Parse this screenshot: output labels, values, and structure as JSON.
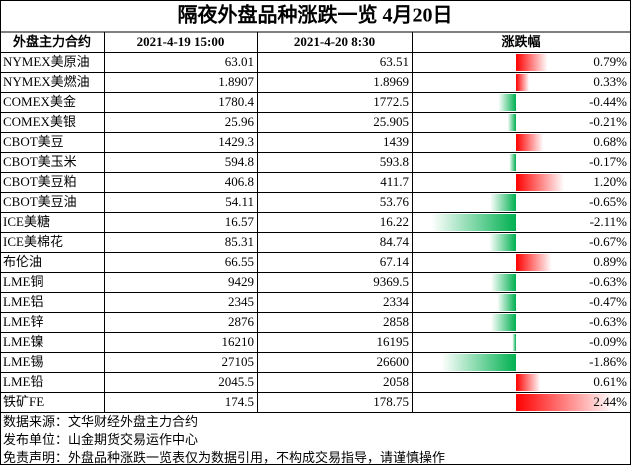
{
  "title": "隔夜外盘品种涨跌一览 4月20日",
  "table": {
    "header": [
      "外盘主力合约",
      "2021-4-19 15:00",
      "2021-4-20 8:30",
      "涨跌幅"
    ],
    "rows": [
      [
        "NYMEX美原油",
        "63.01",
        "63.51",
        "0.79%"
      ],
      [
        "NYMEX美燃油",
        "1.8907",
        "1.8969",
        "0.33%"
      ],
      [
        "COMEX美金",
        "1780.4",
        "1772.5",
        "-0.44%"
      ],
      [
        "COMEX美银",
        "25.96",
        "25.905",
        "-0.21%"
      ],
      [
        "CBOT美豆",
        "1429.3",
        "1439",
        "0.68%"
      ],
      [
        "CBOT美玉米",
        "594.8",
        "593.8",
        "-0.17%"
      ],
      [
        "CBOT美豆粕",
        "406.8",
        "411.7",
        "1.20%"
      ],
      [
        "CBOT美豆油",
        "54.11",
        "53.76",
        "-0.65%"
      ],
      [
        "ICE美糖",
        "16.57",
        "16.22",
        "-2.11%"
      ],
      [
        "ICE美棉花",
        "85.31",
        "84.74",
        "-0.67%"
      ],
      [
        "布伦油",
        "66.55",
        "67.14",
        "0.89%"
      ],
      [
        "LME铜",
        "9429",
        "9369.5",
        "-0.63%"
      ],
      [
        "LME铝",
        "2345",
        "2334",
        "-0.47%"
      ],
      [
        "LME锌",
        "2876",
        "2858",
        "-0.63%"
      ],
      [
        "LME镍",
        "16210",
        "16195",
        "-0.09%"
      ],
      [
        "LME锡",
        "27105",
        "26600",
        "-1.86%"
      ],
      [
        "LME铅",
        "2045.5",
        "2058",
        "0.61%"
      ],
      [
        "铁矿FE",
        "174.5",
        "178.75",
        "2.44%"
      ]
    ],
    "changes": [
      0.79,
      0.33,
      -0.44,
      -0.21,
      0.68,
      -0.17,
      1.2,
      -0.65,
      -2.11,
      -0.67,
      0.89,
      -0.63,
      -0.47,
      -0.63,
      -0.09,
      -1.86,
      0.61,
      2.44
    ]
  },
  "footer": [
    "数据来源：文华财经外盘主力合约",
    "发布单位：山金期货交易运作中心",
    "免责声明：外盘品种涨跌一览表仅为数据引用，不构成交易指导，请谨慎操作"
  ]
}
